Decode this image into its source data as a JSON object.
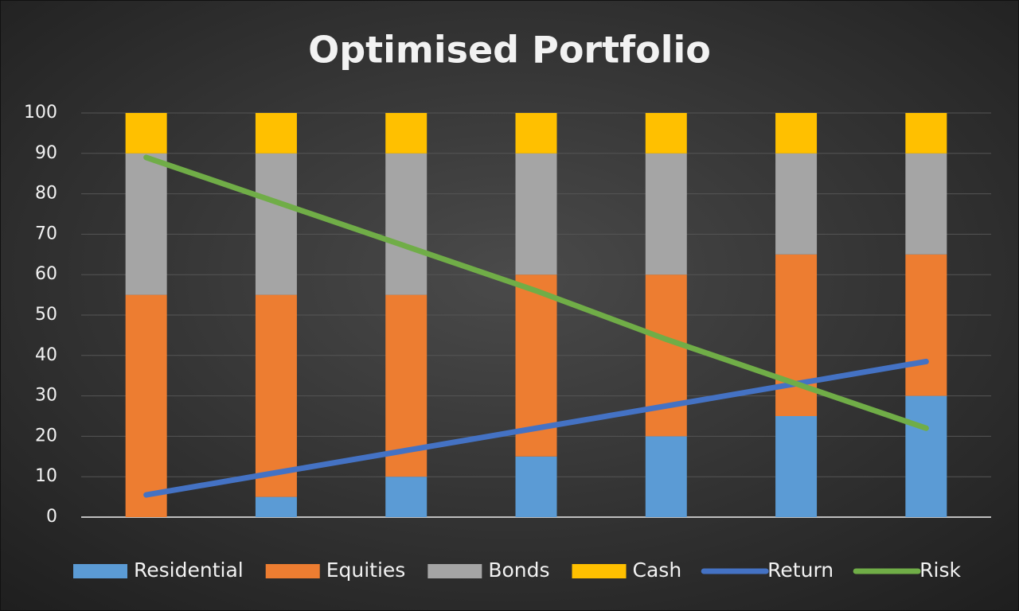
{
  "chart_data": {
    "type": "stacked-bar-line",
    "title": "Optimised Portfolio",
    "categories": [
      null,
      null,
      null,
      null,
      null,
      null,
      null
    ],
    "ylim": [
      0,
      100
    ],
    "yticks": [
      0,
      10,
      20,
      30,
      40,
      50,
      60,
      70,
      80,
      90,
      100
    ],
    "grid": true,
    "legend": "bottom",
    "series": [
      {
        "name": "Residential",
        "type": "bar",
        "color": "#5b9bd5",
        "values": [
          0,
          5,
          10,
          15,
          20,
          25,
          30
        ]
      },
      {
        "name": "Equities",
        "type": "bar",
        "color": "#ed7d31",
        "values": [
          55,
          50,
          45,
          45,
          40,
          40,
          35
        ]
      },
      {
        "name": "Bonds",
        "type": "bar",
        "color": "#a5a5a5",
        "values": [
          35,
          35,
          35,
          30,
          30,
          25,
          25
        ]
      },
      {
        "name": "Cash",
        "type": "bar",
        "color": "#ffc000",
        "values": [
          10,
          10,
          10,
          10,
          10,
          10,
          10
        ]
      },
      {
        "name": "Return",
        "type": "line",
        "color": "#4472c4",
        "values": [
          5.5,
          11,
          16.5,
          22,
          27.5,
          33,
          38.5
        ]
      },
      {
        "name": "Risk",
        "type": "line",
        "color": "#70ad47",
        "values": [
          89,
          78,
          67,
          56,
          44,
          33,
          22
        ]
      }
    ]
  }
}
